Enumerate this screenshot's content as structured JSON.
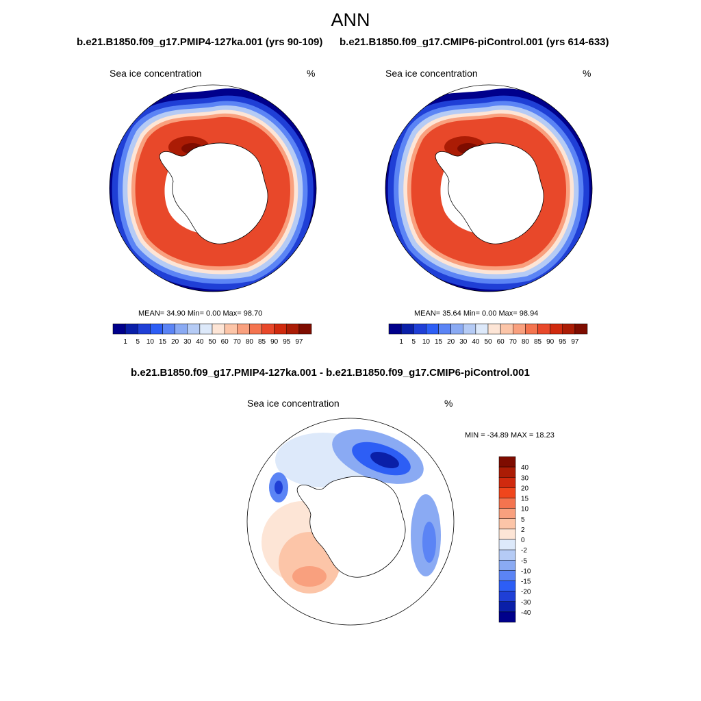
{
  "figure": {
    "title": "ANN",
    "panels": [
      {
        "header": "b.e21.B1850.f09_g17.PMIP4-127ka.001 (yrs 90-109)",
        "left_label": "Sea ice concentration",
        "right_label": "%",
        "stats": "MEAN=  34.90  Min=   0.00  Max=  98.70"
      },
      {
        "header": "b.e21.B1850.f09_g17.CMIP6-piControl.001 (yrs 614-633)",
        "left_label": "Sea ice concentration",
        "right_label": "%",
        "stats": "MEAN=  35.64  Min=   0.00  Max=  98.94"
      },
      {
        "header": "b.e21.B1850.f09_g17.PMIP4-127ka.001 - b.e21.B1850.f09_g17.CMIP6-piControl.001",
        "left_label": "Sea ice concentration",
        "right_label": "%",
        "stats": "MIN = -34.89 MAX =  18.23"
      }
    ],
    "colorbar_concentration": {
      "levels": [
        "1",
        "5",
        "10",
        "15",
        "20",
        "30",
        "40",
        "50",
        "60",
        "70",
        "80",
        "85",
        "90",
        "95",
        "97"
      ],
      "colors": [
        "#00008b",
        "#0a1fa8",
        "#1f3fd6",
        "#2d5ef5",
        "#5b84f5",
        "#8aaaf3",
        "#b5cbf5",
        "#dde9fa",
        "#fde5d6",
        "#fcc5a8",
        "#f9a07e",
        "#f4744f",
        "#e8482a",
        "#d02a0e",
        "#ab1c05",
        "#7e0c00"
      ]
    },
    "colorbar_difference": {
      "levels": [
        "40",
        "30",
        "20",
        "15",
        "10",
        "5",
        "2",
        "0",
        "-2",
        "-5",
        "-10",
        "-15",
        "-20",
        "-30",
        "-40"
      ],
      "colors": [
        "#7e0c00",
        "#ab1c05",
        "#d02a0e",
        "#f0461c",
        "#f4744f",
        "#f9a07e",
        "#fcc5a8",
        "#fde5d6",
        "#dde9fa",
        "#b5cbf5",
        "#8aaaf3",
        "#5b84f5",
        "#2d5ef5",
        "#1f3fd6",
        "#0a1fa8",
        "#00008b"
      ]
    }
  }
}
